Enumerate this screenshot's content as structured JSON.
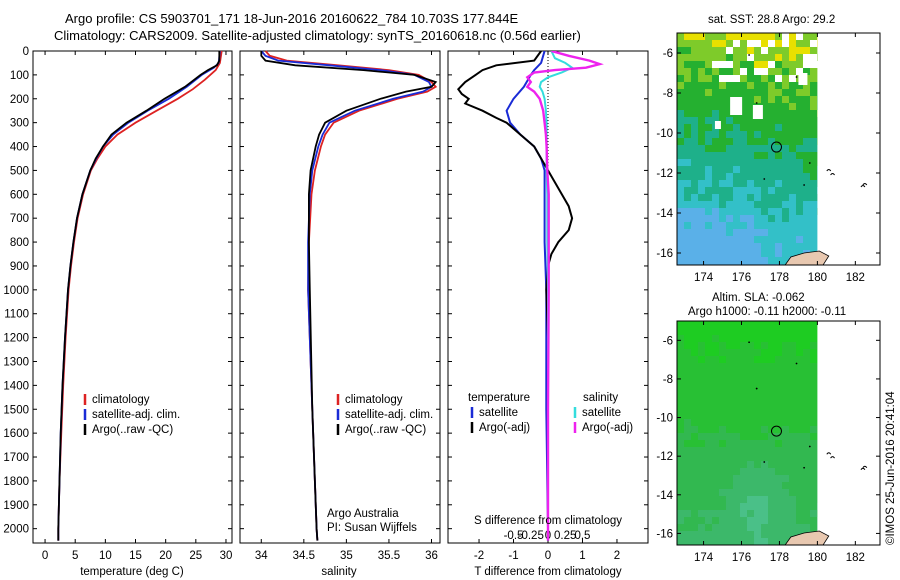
{
  "header": {
    "line1": "Argo profile: CS 5903701_171 18-Jun-2016 20160622_784 10.703S 177.844E",
    "line2": "Climatology: CARS2009. Satellite-adjusted climatology: synTS_20160618.nc (0.56d earlier)"
  },
  "side_label": "©IMOS 25-Jun-2016 20:41:04",
  "colors": {
    "climatology": "#dd2222",
    "satellite": "#1a2bd6",
    "argo": "#000000",
    "sal_satellite": "#33dddd",
    "sal_argo": "#ee22ee"
  },
  "chart_data": [
    {
      "type": "line",
      "id": "temperature",
      "xlabel": "temperature (deg C)",
      "ylabel": "",
      "xlim": [
        -2,
        31
      ],
      "ylim": [
        2060,
        0
      ],
      "xticks": [
        0,
        5,
        10,
        15,
        20,
        25,
        30
      ],
      "yticks": [
        0,
        100,
        200,
        300,
        400,
        500,
        600,
        700,
        800,
        900,
        1000,
        1100,
        1200,
        1300,
        1400,
        1500,
        1600,
        1700,
        1800,
        1900,
        2000
      ],
      "legend": [
        "climatology",
        "satellite-adj. clim.",
        "Argo(..raw -QC)"
      ],
      "series": [
        {
          "name": "climatology",
          "color": "#dd2222",
          "depth": [
            0,
            50,
            80,
            120,
            160,
            200,
            250,
            300,
            350,
            400,
            450,
            500,
            600,
            700,
            800,
            900,
            1000,
            1200,
            1400,
            1600,
            1800,
            2000,
            2050
          ],
          "values": [
            29.3,
            29.0,
            28.3,
            26.5,
            24.5,
            22.0,
            18.5,
            15.0,
            12.0,
            10.0,
            8.7,
            7.6,
            6.3,
            5.4,
            4.8,
            4.3,
            3.9,
            3.4,
            3.0,
            2.7,
            2.4,
            2.2,
            2.2
          ]
        },
        {
          "name": "satellite-adj. clim.",
          "color": "#1a2bd6",
          "depth": [
            0,
            50,
            70,
            100,
            150,
            200,
            250,
            300,
            350,
            400,
            450,
            500,
            600,
            700,
            800,
            900,
            1000,
            1200,
            1400,
            1600,
            1800,
            2000,
            2050
          ],
          "values": [
            29.0,
            28.8,
            28.0,
            26.0,
            23.5,
            20.5,
            17.0,
            13.8,
            11.3,
            9.6,
            8.5,
            7.5,
            6.2,
            5.3,
            4.7,
            4.2,
            3.8,
            3.3,
            2.9,
            2.6,
            2.4,
            2.2,
            2.2
          ]
        },
        {
          "name": "Argo(..raw -QC)",
          "color": "#000000",
          "depth": [
            0,
            40,
            60,
            80,
            100,
            150,
            200,
            250,
            300,
            350,
            400,
            450,
            500,
            600,
            700,
            800,
            900,
            1000,
            1200,
            1400,
            1600,
            1800,
            2000,
            2050
          ],
          "values": [
            28.9,
            28.9,
            28.5,
            27.0,
            25.8,
            23.2,
            19.8,
            16.8,
            13.5,
            11.0,
            9.6,
            8.4,
            7.5,
            6.2,
            5.3,
            4.7,
            4.2,
            3.8,
            3.3,
            2.9,
            2.6,
            2.4,
            2.2,
            2.2
          ]
        }
      ]
    },
    {
      "type": "line",
      "id": "salinity",
      "xlabel": "salinity",
      "ylabel": "",
      "xlim": [
        33.75,
        36.1
      ],
      "ylim": [
        2060,
        0
      ],
      "xticks": [
        34,
        34.5,
        35,
        35.5,
        36
      ],
      "legend": [
        "climatology",
        "satellite-adj. clim.",
        "Argo(..raw -QC)"
      ],
      "annotation": [
        "Argo Australia",
        "PI: Susan Wijffels"
      ],
      "series": [
        {
          "name": "climatology",
          "color": "#dd2222",
          "depth": [
            0,
            20,
            40,
            60,
            80,
            100,
            130,
            150,
            170,
            200,
            250,
            300,
            350,
            400,
            500,
            600,
            800,
            1000,
            1500,
            2000,
            2050
          ],
          "values": [
            34.05,
            34.1,
            34.3,
            34.9,
            35.5,
            35.85,
            36.0,
            36.05,
            35.95,
            35.6,
            35.15,
            34.85,
            34.75,
            34.7,
            34.63,
            34.59,
            34.56,
            34.55,
            34.6,
            34.65,
            34.66
          ]
        },
        {
          "name": "satellite-adj. clim.",
          "color": "#1a2bd6",
          "depth": [
            0,
            20,
            40,
            60,
            80,
            100,
            130,
            150,
            170,
            200,
            250,
            300,
            350,
            400,
            500,
            600,
            800,
            1000,
            1500,
            2000,
            2050
          ],
          "values": [
            34.0,
            34.05,
            34.2,
            34.8,
            35.4,
            35.8,
            35.97,
            36.0,
            35.9,
            35.55,
            35.1,
            34.8,
            34.72,
            34.67,
            34.6,
            34.57,
            34.55,
            34.55,
            34.6,
            34.65,
            34.66
          ]
        },
        {
          "name": "Argo(..raw -QC)",
          "color": "#000000",
          "depth": [
            0,
            20,
            40,
            60,
            80,
            100,
            130,
            150,
            170,
            200,
            250,
            300,
            350,
            400,
            500,
            600,
            800,
            1000,
            1500,
            2000,
            2050
          ],
          "values": [
            34.0,
            34.0,
            34.05,
            34.4,
            35.2,
            35.8,
            36.05,
            36.0,
            35.7,
            35.4,
            35.0,
            34.75,
            34.68,
            34.64,
            34.58,
            34.56,
            34.56,
            34.57,
            34.6,
            34.65,
            34.66
          ]
        }
      ]
    },
    {
      "type": "line",
      "id": "differences",
      "xlabel": "T difference from climatology",
      "xlabel_top": "S difference from climatology",
      "xlim": [
        -2.9,
        2.9
      ],
      "ylim": [
        2060,
        0
      ],
      "xticks_T": [
        -2,
        -1,
        0,
        1,
        2
      ],
      "xticks_S": [
        -0.5,
        -0.25,
        0,
        0.25,
        0.5
      ],
      "xticklabels_S": [
        "-0.5",
        "-0.25",
        "0",
        "0.25",
        "0.5"
      ],
      "legend_T": {
        "title": "temperature",
        "items": [
          "satellite",
          "Argo(-adj)"
        ]
      },
      "legend_S": {
        "title": "salinity",
        "items": [
          "satellite",
          "Argo(-adj)"
        ]
      },
      "series": [
        {
          "name": "T satellite",
          "color": "#1a2bd6",
          "depth": [
            0,
            50,
            80,
            100,
            150,
            200,
            250,
            300,
            350,
            400,
            450,
            500,
            600,
            700,
            800,
            1000,
            1500,
            2000,
            2050
          ],
          "values": [
            -0.1,
            -0.2,
            -0.4,
            -0.5,
            -0.7,
            -1.0,
            -1.2,
            -1.1,
            -0.8,
            -0.4,
            -0.2,
            -0.1,
            -0.1,
            -0.1,
            -0.1,
            -0.05,
            -0.05,
            0,
            0
          ]
        },
        {
          "name": "T Argo(-adj)",
          "color": "#000000",
          "depth": [
            0,
            40,
            60,
            80,
            100,
            130,
            160,
            180,
            200,
            220,
            250,
            280,
            300,
            350,
            400,
            450,
            500,
            600,
            650,
            700,
            750,
            800,
            850,
            900,
            1000,
            1200,
            1500,
            2000,
            2050
          ],
          "values": [
            -0.2,
            -0.4,
            -1.5,
            -1.9,
            -2.1,
            -2.4,
            -2.6,
            -2.5,
            -2.3,
            -2.4,
            -1.9,
            -1.5,
            -1.2,
            -0.8,
            -0.4,
            -0.2,
            0,
            0.4,
            0.6,
            0.7,
            0.6,
            0.3,
            0.1,
            0,
            -0.05,
            0,
            0,
            0,
            0
          ]
        },
        {
          "name": "S satellite",
          "color": "#33dddd",
          "depth": [
            0,
            30,
            50,
            70,
            90,
            110,
            130,
            150,
            170,
            200,
            250,
            300,
            350,
            400,
            500,
            600,
            800,
            1000,
            1500,
            2000,
            2050
          ],
          "values": [
            0.05,
            0.1,
            0.25,
            0.35,
            0.2,
            0.0,
            -0.1,
            -0.12,
            -0.08,
            -0.05,
            -0.03,
            -0.02,
            -0.02,
            -0.02,
            -0.02,
            -0.01,
            -0.01,
            0,
            0,
            0,
            0
          ]
        },
        {
          "name": "S Argo(-adj)",
          "color": "#ee22ee",
          "depth": [
            0,
            20,
            40,
            55,
            70,
            80,
            90,
            110,
            130,
            150,
            170,
            200,
            250,
            300,
            350,
            400,
            500,
            600,
            800,
            1000,
            1500,
            2000,
            2050
          ],
          "values": [
            0.05,
            0.3,
            0.6,
            0.75,
            0.55,
            0.1,
            -0.2,
            -0.3,
            -0.25,
            -0.3,
            -0.2,
            -0.12,
            -0.07,
            -0.05,
            -0.03,
            -0.02,
            -0.01,
            0.01,
            0.01,
            0.01,
            0,
            0,
            0
          ]
        }
      ]
    },
    {
      "type": "heatmap",
      "id": "sst-map",
      "title": "sat. SST: 28.8 Argo: 29.2",
      "xlim": [
        172.6,
        183.3
      ],
      "ylim": [
        -16.6,
        -5.0
      ],
      "xticks": [
        174,
        176,
        178,
        180,
        182
      ],
      "yticks": [
        -6,
        -8,
        -10,
        -12,
        -14,
        -16
      ],
      "profile_location": [
        177.844,
        -10.703
      ]
    },
    {
      "type": "heatmap",
      "id": "sla-map",
      "title": "Altim. SLA: -0.062",
      "subtitle": "Argo h1000: -0.11 h2000: -0.11",
      "xlim": [
        172.6,
        183.3
      ],
      "ylim": [
        -16.6,
        -5.0
      ],
      "xticks": [
        174,
        176,
        178,
        180,
        182
      ],
      "yticks": [
        -6,
        -8,
        -10,
        -12,
        -14,
        -16
      ],
      "profile_location": [
        177.844,
        -10.703
      ]
    }
  ]
}
